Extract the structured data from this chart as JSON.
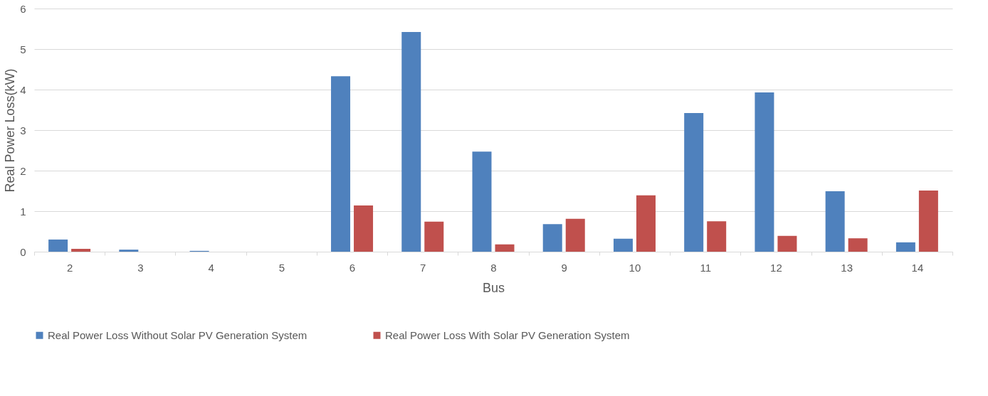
{
  "chart_data": {
    "type": "bar",
    "xlabel": "Bus",
    "ylabel": "Real Power Loss(kW)",
    "categories": [
      "2",
      "3",
      "4",
      "5",
      "6",
      "7",
      "8",
      "9",
      "10",
      "11",
      "12",
      "13",
      "14"
    ],
    "series": [
      {
        "name": "Real Power Loss Without Solar PV Generation System",
        "color": "#4f81bd",
        "values": [
          0.3,
          0.05,
          0.02,
          0,
          4.33,
          5.42,
          2.47,
          0.68,
          0.32,
          3.42,
          3.93,
          1.49,
          0.23
        ]
      },
      {
        "name": "Real Power Loss With Solar PV Generation System",
        "color": "#c0504d",
        "values": [
          0.07,
          0,
          0,
          0,
          1.14,
          0.74,
          0.18,
          0.81,
          1.39,
          0.75,
          0.39,
          0.33,
          1.51
        ]
      }
    ],
    "ylim": [
      0,
      6
    ],
    "yticks": [
      0,
      1,
      2,
      3,
      4,
      5,
      6
    ],
    "grid": "y",
    "legend": "bottom"
  }
}
